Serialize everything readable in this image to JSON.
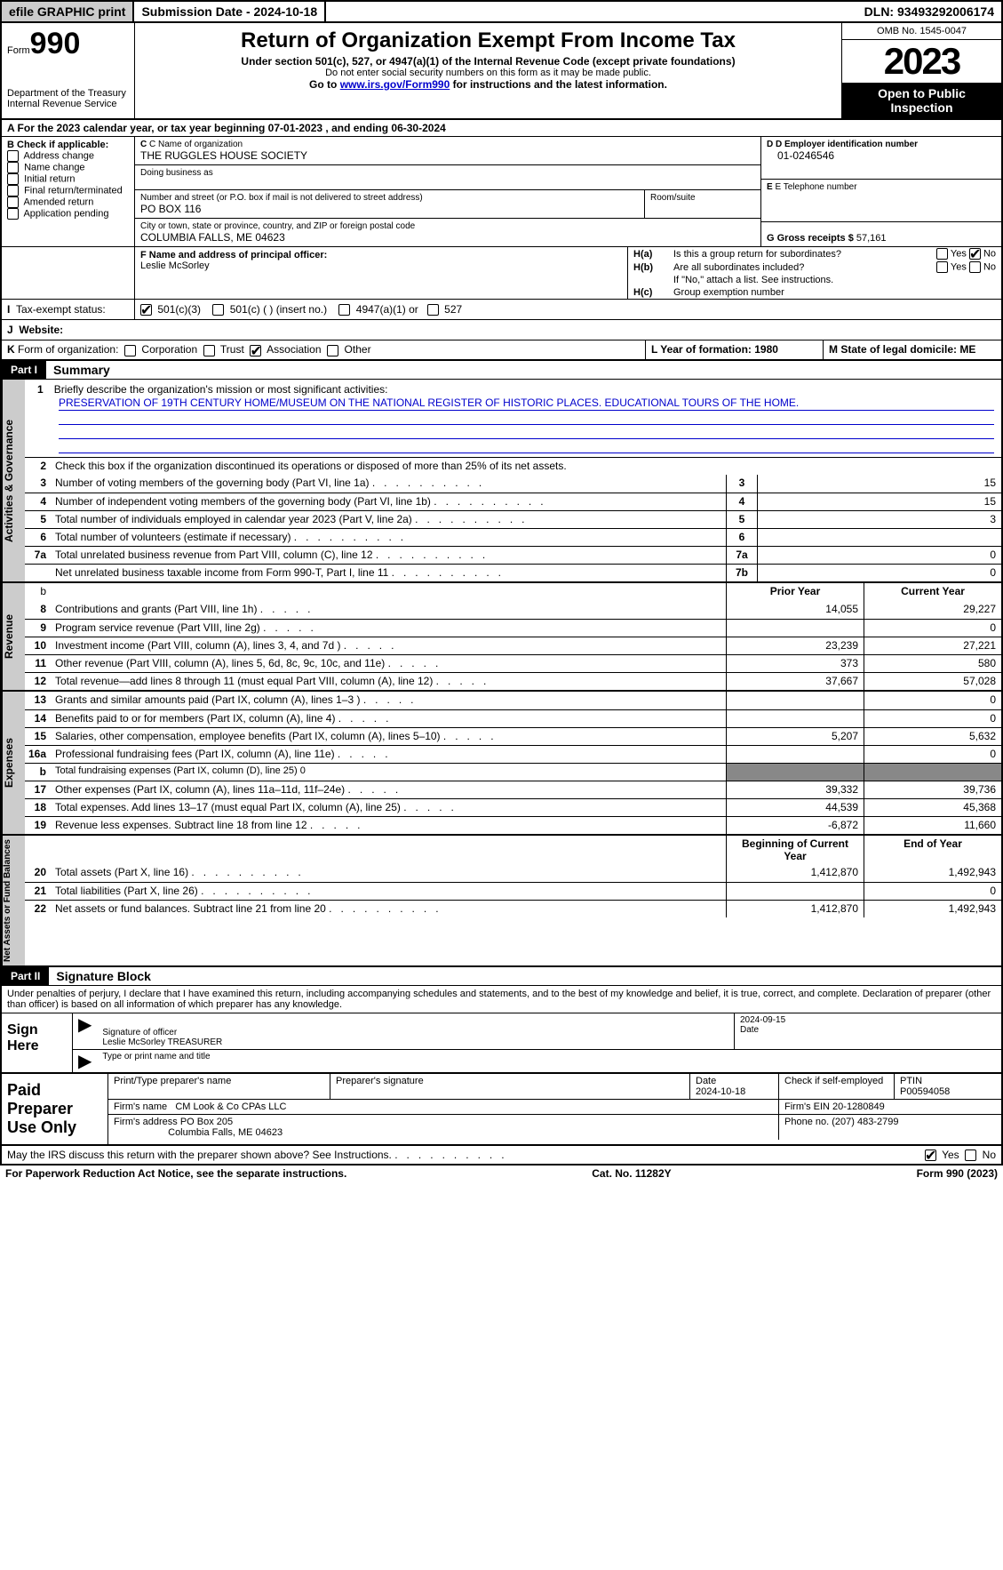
{
  "topbar": {
    "btn": "efile GRAPHIC print",
    "sub_date_label": "Submission Date - ",
    "sub_date": "2024-10-18",
    "dln_label": "DLN: ",
    "dln": "93493292006174"
  },
  "header": {
    "form_word": "Form",
    "form_no": "990",
    "dept": "Department of the Treasury\nInternal Revenue Service",
    "title": "Return of Organization Exempt From Income Tax",
    "sub1": "Under section 501(c), 527, or 4947(a)(1) of the Internal Revenue Code (except private foundations)",
    "sub2": "Do not enter social security numbers on this form as it may be made public.",
    "sub3_pre": "Go to ",
    "sub3_link": "www.irs.gov/Form990",
    "sub3_post": " for instructions and the latest information.",
    "omb": "OMB No. 1545-0047",
    "year": "2023",
    "inspect": "Open to Public Inspection"
  },
  "rowA": {
    "label": "A For the 2023 calendar year, or tax year beginning ",
    "begin": "07-01-2023",
    "mid": "  , and ending ",
    "end": "06-30-2024"
  },
  "colB": {
    "label": "B Check if applicable:",
    "opts": [
      "Address change",
      "Name change",
      "Initial return",
      "Final return/terminated",
      "Amended return",
      "Application pending"
    ]
  },
  "boxC": {
    "label": "C Name of organization",
    "val": "THE RUGGLES HOUSE SOCIETY",
    "dba_label": "Doing business as",
    "street_label": "Number and street (or P.O. box if mail is not delivered to street address)",
    "street": "PO BOX 116",
    "room_label": "Room/suite",
    "city_label": "City or town, state or province, country, and ZIP or foreign postal code",
    "city": "COLUMBIA FALLS, ME  04623"
  },
  "boxD": {
    "label": "D Employer identification number",
    "val": "01-0246546"
  },
  "boxE": {
    "label": "E Telephone number"
  },
  "boxG": {
    "label": "G Gross receipts $ ",
    "val": "57,161"
  },
  "boxF": {
    "label": "F  Name and address of principal officer:",
    "val": "Leslie McSorley"
  },
  "boxH": {
    "a_label": "H(a)",
    "a_text": "Is this a group return for subordinates?",
    "b_label": "H(b)",
    "b_text": "Are all subordinates included?",
    "b_note": "If \"No,\" attach a list. See instructions.",
    "c_label": "H(c)",
    "c_text": "Group exemption number",
    "yes": "Yes",
    "no": "No"
  },
  "rowI": {
    "label": "I",
    "text": "Tax-exempt status:",
    "opts": [
      "501(c)(3)",
      "501(c) (  ) (insert no.)",
      "4947(a)(1) or",
      "527"
    ]
  },
  "rowJ": {
    "label": "J",
    "text": "Website:"
  },
  "rowK": {
    "label": "K",
    "text": "Form of organization:",
    "opts": [
      "Corporation",
      "Trust",
      "Association",
      "Other"
    ],
    "L": "L Year of formation: 1980",
    "M": "M State of legal domicile: ME"
  },
  "part1": {
    "tag": "Part I",
    "title": "Summary"
  },
  "mission": {
    "num": "1",
    "label": "Briefly describe the organization's mission or most significant activities:",
    "text": "PRESERVATION OF 19TH CENTURY HOME/MUSEUM ON THE NATIONAL REGISTER OF HISTORIC PLACES. EDUCATIONAL TOURS OF THE HOME."
  },
  "line2": {
    "num": "2",
    "text": "Check this box      if the organization discontinued its operations or disposed of more than 25% of its net assets."
  },
  "vtabs": {
    "gov": "Activities & Governance",
    "rev": "Revenue",
    "exp": "Expenses",
    "net": "Net Assets or Fund Balances"
  },
  "gov_lines": [
    {
      "n": "3",
      "d": "Number of voting members of the governing body (Part VI, line 1a)",
      "b": "3",
      "v": "15"
    },
    {
      "n": "4",
      "d": "Number of independent voting members of the governing body (Part VI, line 1b)",
      "b": "4",
      "v": "15"
    },
    {
      "n": "5",
      "d": "Total number of individuals employed in calendar year 2023 (Part V, line 2a)",
      "b": "5",
      "v": "3"
    },
    {
      "n": "6",
      "d": "Total number of volunteers (estimate if necessary)",
      "b": "6",
      "v": ""
    },
    {
      "n": "7a",
      "d": "Total unrelated business revenue from Part VIII, column (C), line 12",
      "b": "7a",
      "v": "0"
    },
    {
      "n": "",
      "d": "Net unrelated business taxable income from Form 990-T, Part I, line 11",
      "b": "7b",
      "v": "0"
    }
  ],
  "col_headers": {
    "b": "b",
    "prior": "Prior Year",
    "current": "Current Year"
  },
  "rev_lines": [
    {
      "n": "8",
      "d": "Contributions and grants (Part VIII, line 1h)",
      "p": "14,055",
      "c": "29,227"
    },
    {
      "n": "9",
      "d": "Program service revenue (Part VIII, line 2g)",
      "p": "",
      "c": "0"
    },
    {
      "n": "10",
      "d": "Investment income (Part VIII, column (A), lines 3, 4, and 7d )",
      "p": "23,239",
      "c": "27,221"
    },
    {
      "n": "11",
      "d": "Other revenue (Part VIII, column (A), lines 5, 6d, 8c, 9c, 10c, and 11e)",
      "p": "373",
      "c": "580"
    },
    {
      "n": "12",
      "d": "Total revenue—add lines 8 through 11 (must equal Part VIII, column (A), line 12)",
      "p": "37,667",
      "c": "57,028"
    }
  ],
  "exp_lines": [
    {
      "n": "13",
      "d": "Grants and similar amounts paid (Part IX, column (A), lines 1–3 )",
      "p": "",
      "c": "0"
    },
    {
      "n": "14",
      "d": "Benefits paid to or for members (Part IX, column (A), line 4)",
      "p": "",
      "c": "0"
    },
    {
      "n": "15",
      "d": "Salaries, other compensation, employee benefits (Part IX, column (A), lines 5–10)",
      "p": "5,207",
      "c": "5,632"
    },
    {
      "n": "16a",
      "d": "Professional fundraising fees (Part IX, column (A), line 11e)",
      "p": "",
      "c": "0"
    },
    {
      "n": "b",
      "d": "Total fundraising expenses (Part IX, column (D), line 25) 0",
      "p": "BLACK",
      "c": "BLACK"
    },
    {
      "n": "17",
      "d": "Other expenses (Part IX, column (A), lines 11a–11d, 11f–24e)",
      "p": "39,332",
      "c": "39,736"
    },
    {
      "n": "18",
      "d": "Total expenses. Add lines 13–17 (must equal Part IX, column (A), line 25)",
      "p": "44,539",
      "c": "45,368"
    },
    {
      "n": "19",
      "d": "Revenue less expenses. Subtract line 18 from line 12",
      "p": "-6,872",
      "c": "11,660"
    }
  ],
  "net_headers": {
    "prior": "Beginning of Current Year",
    "current": "End of Year"
  },
  "net_lines": [
    {
      "n": "20",
      "d": "Total assets (Part X, line 16)",
      "p": "1,412,870",
      "c": "1,492,943"
    },
    {
      "n": "21",
      "d": "Total liabilities (Part X, line 26)",
      "p": "",
      "c": "0"
    },
    {
      "n": "22",
      "d": "Net assets or fund balances. Subtract line 21 from line 20",
      "p": "1,412,870",
      "c": "1,492,943"
    }
  ],
  "part2": {
    "tag": "Part II",
    "title": "Signature Block"
  },
  "sig_text": "Under penalties of perjury, I declare that I have examined this return, including accompanying schedules and statements, and to the best of my knowledge and belief, it is true, correct, and complete. Declaration of preparer (other than officer) is based on all information of which preparer has any knowledge.",
  "sign": {
    "here": "Sign Here",
    "sig_label": "Signature of officer",
    "date_label": "Date",
    "date": "2024-09-15",
    "name": "Leslie McSorley TREASURER",
    "name_label": "Type or print name and title"
  },
  "prep": {
    "title": "Paid Preparer Use Only",
    "name_label": "Print/Type preparer's name",
    "sig_label": "Preparer's signature",
    "date_label": "Date",
    "date": "2024-10-18",
    "check_label": "Check       if self-employed",
    "ptin_label": "PTIN",
    "ptin": "P00594058",
    "firm_name_label": "Firm's name",
    "firm_name": "CM Look & Co CPAs LLC",
    "firm_ein_label": "Firm's EIN",
    "firm_ein": "20-1280849",
    "firm_addr_label": "Firm's address",
    "firm_addr1": "PO Box 205",
    "firm_addr2": "Columbia Falls, ME  04623",
    "phone_label": "Phone no.",
    "phone": "(207) 483-2799"
  },
  "discuss": {
    "text": "May the IRS discuss this return with the preparer shown above? See Instructions.",
    "yes": "Yes",
    "no": "No"
  },
  "footer": {
    "left": "For Paperwork Reduction Act Notice, see the separate instructions.",
    "mid": "Cat. No. 11282Y",
    "right_pre": "Form ",
    "right_form": "990",
    "right_post": " (2023)"
  }
}
